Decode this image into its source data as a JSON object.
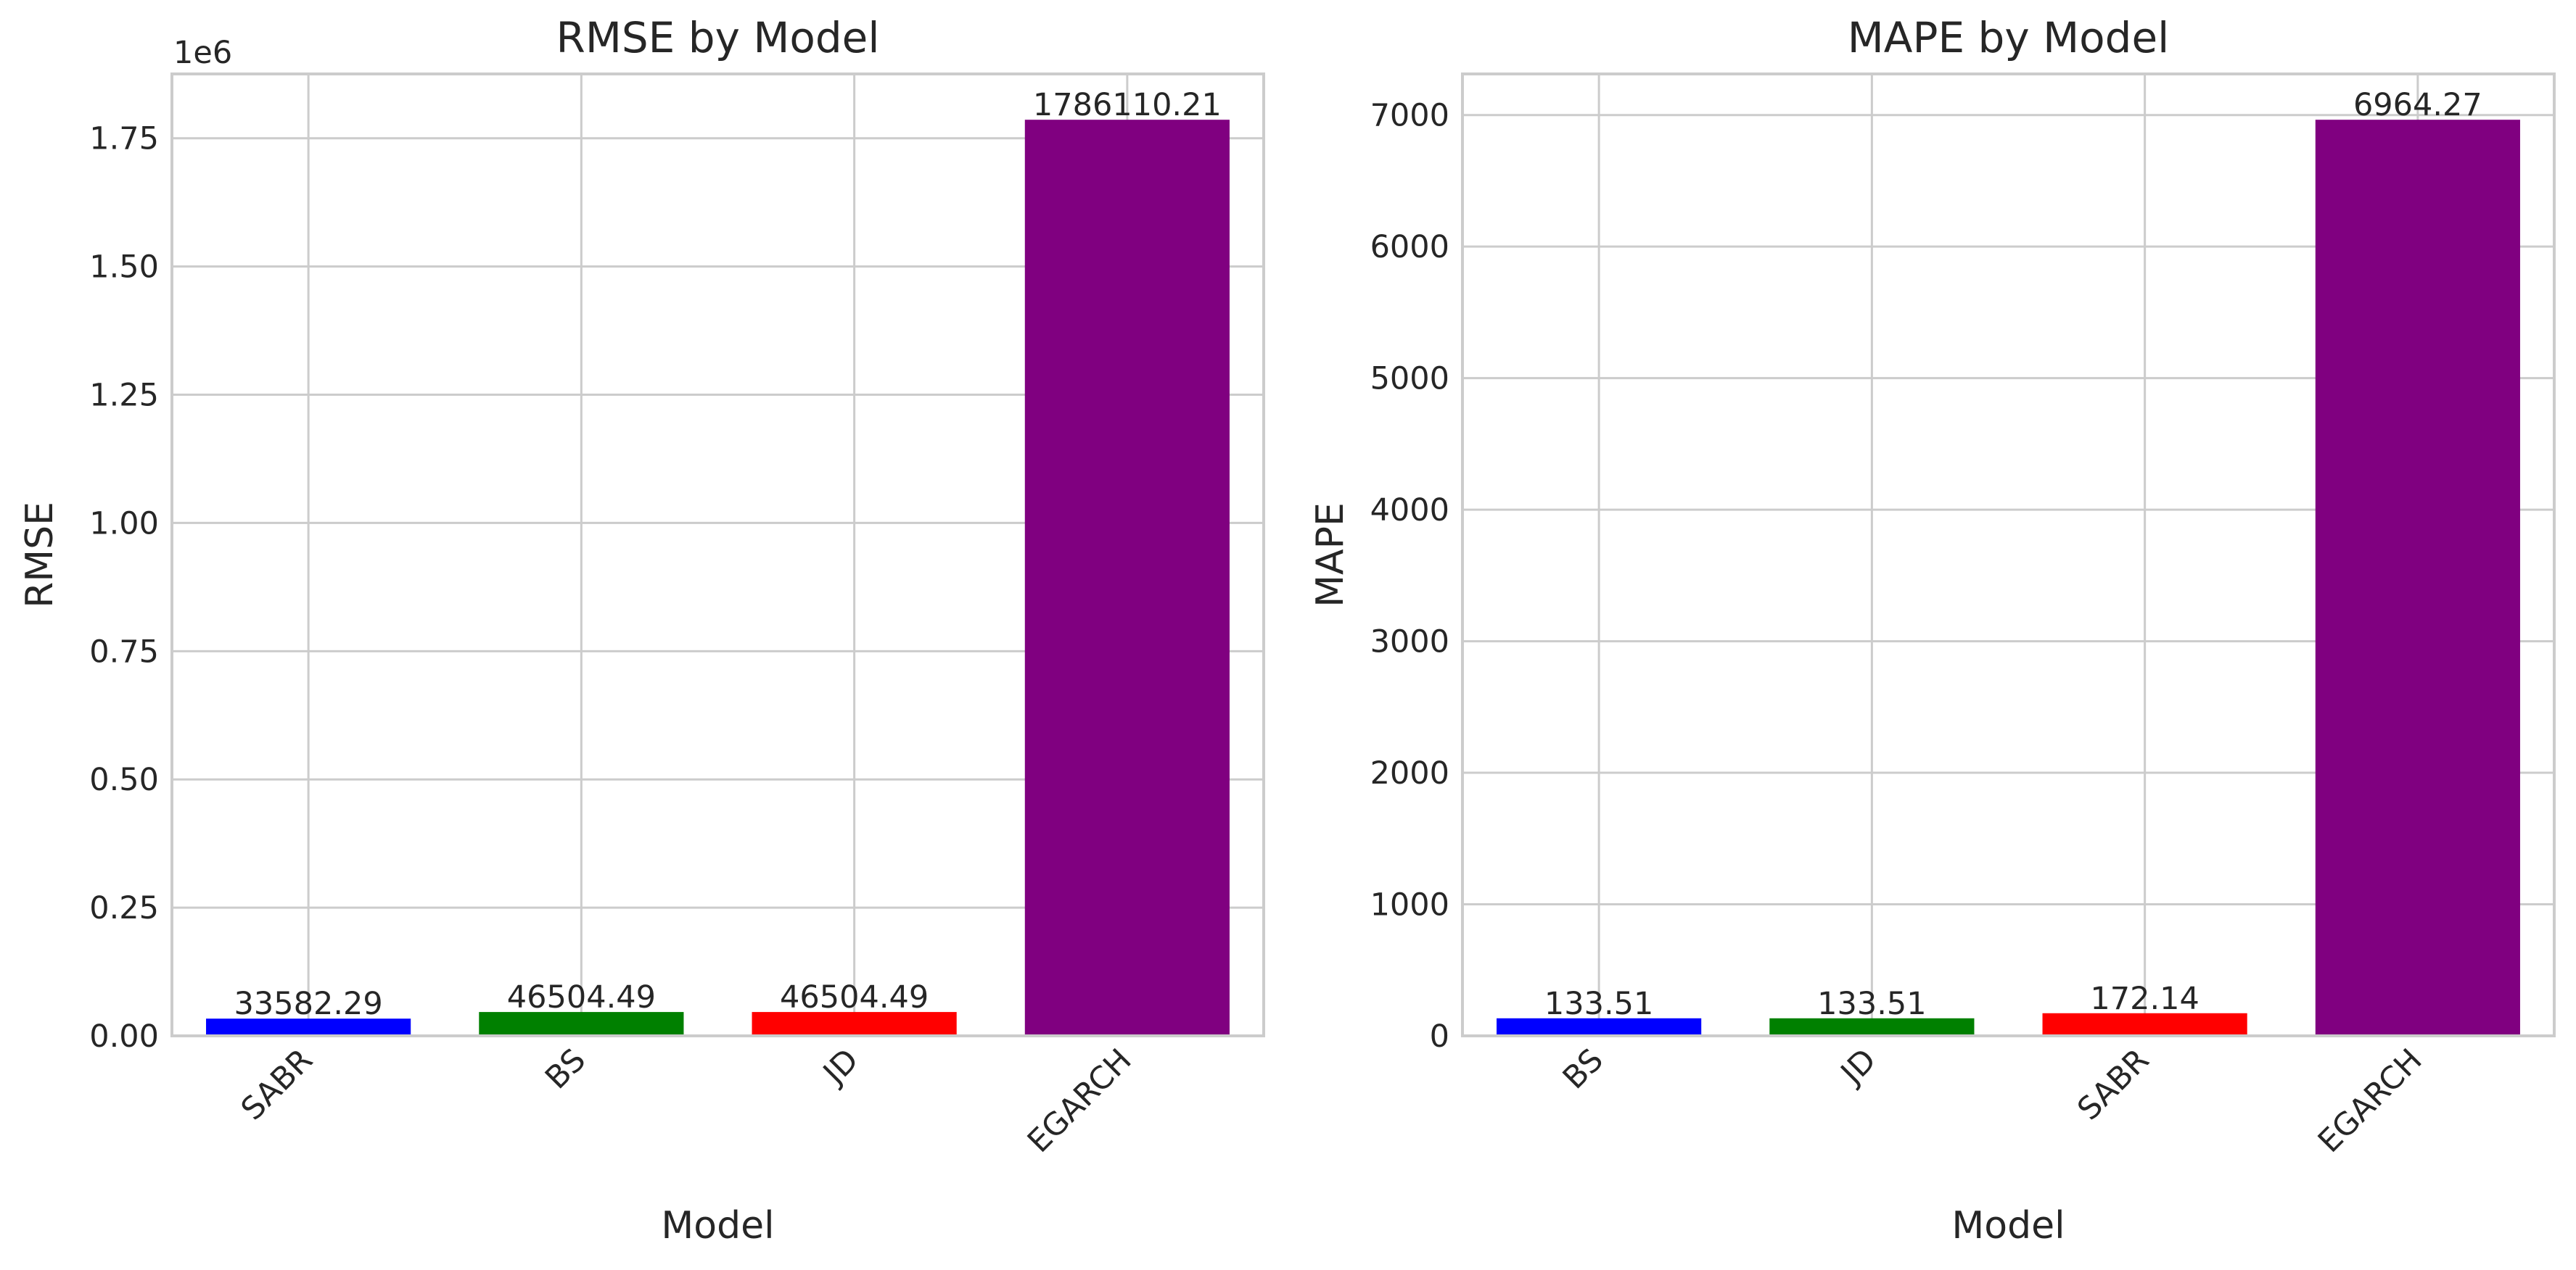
{
  "chart_data": [
    {
      "type": "bar",
      "title": "RMSE by Model",
      "xlabel": "Model",
      "ylabel": "RMSE",
      "offset_text": "1e6",
      "categories": [
        "SABR",
        "BS",
        "JD",
        "EGARCH"
      ],
      "values": [
        33582.29,
        46504.49,
        46504.49,
        1786110.21
      ],
      "value_labels": [
        "33582.29",
        "46504.49",
        "46504.49",
        "1786110.21"
      ],
      "colors": [
        "#0000ff",
        "#008000",
        "#ff0000",
        "#800080"
      ],
      "ylim": [
        0,
        1875417.72
      ],
      "yticks": [
        0,
        250000,
        500000,
        750000,
        1000000,
        1250000,
        1500000,
        1750000
      ],
      "ytick_labels": [
        "0.00",
        "0.25",
        "0.50",
        "0.75",
        "1.00",
        "1.25",
        "1.50",
        "1.75"
      ],
      "grid": true
    },
    {
      "type": "bar",
      "title": "MAPE by Model",
      "xlabel": "Model",
      "ylabel": "MAPE",
      "offset_text": "",
      "categories": [
        "BS",
        "JD",
        "SABR",
        "EGARCH"
      ],
      "values": [
        133.51,
        133.51,
        172.14,
        6964.27
      ],
      "value_labels": [
        "133.51",
        "133.51",
        "172.14",
        "6964.27"
      ],
      "colors": [
        "#0000ff",
        "#008000",
        "#ff0000",
        "#800080"
      ],
      "ylim": [
        0,
        7312.48
      ],
      "yticks": [
        0,
        1000,
        2000,
        3000,
        4000,
        5000,
        6000,
        7000
      ],
      "ytick_labels": [
        "0",
        "1000",
        "2000",
        "3000",
        "4000",
        "5000",
        "6000",
        "7000"
      ],
      "grid": true
    }
  ]
}
